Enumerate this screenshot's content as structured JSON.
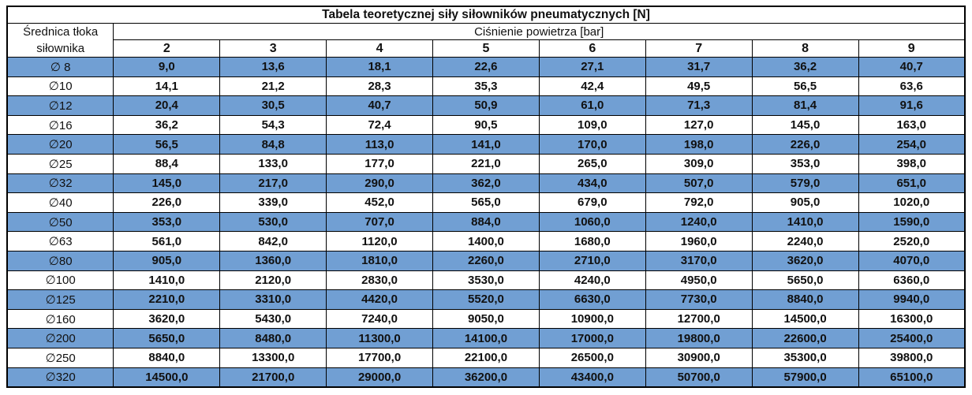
{
  "colors": {
    "row_band_blue": "#719FD3",
    "row_plain_white": "#FFFFFF",
    "border_black": "#000000",
    "text": "#111111"
  },
  "chart_data": {
    "type": "table",
    "title": "Tabela teoretycznej siły siłowników pneumatycznych [N]",
    "row_header": "Średnica tłoka siłownika",
    "column_group_header": "Ciśnienie powietrza [bar]",
    "columns": [
      "2",
      "3",
      "4",
      "5",
      "6",
      "7",
      "8",
      "9"
    ],
    "row_banding": "alternating, first data row blue",
    "rows": [
      {
        "diameter": "∅ 8",
        "values": [
          "9,0",
          "13,6",
          "18,1",
          "22,6",
          "27,1",
          "31,7",
          "36,2",
          "40,7"
        ]
      },
      {
        "diameter": "∅10",
        "values": [
          "14,1",
          "21,2",
          "28,3",
          "35,3",
          "42,4",
          "49,5",
          "56,5",
          "63,6"
        ]
      },
      {
        "diameter": "∅12",
        "values": [
          "20,4",
          "30,5",
          "40,7",
          "50,9",
          "61,0",
          "71,3",
          "81,4",
          "91,6"
        ]
      },
      {
        "diameter": "∅16",
        "values": [
          "36,2",
          "54,3",
          "72,4",
          "90,5",
          "109,0",
          "127,0",
          "145,0",
          "163,0"
        ]
      },
      {
        "diameter": "∅20",
        "values": [
          "56,5",
          "84,8",
          "113,0",
          "141,0",
          "170,0",
          "198,0",
          "226,0",
          "254,0"
        ]
      },
      {
        "diameter": "∅25",
        "values": [
          "88,4",
          "133,0",
          "177,0",
          "221,0",
          "265,0",
          "309,0",
          "353,0",
          "398,0"
        ]
      },
      {
        "diameter": "∅32",
        "values": [
          "145,0",
          "217,0",
          "290,0",
          "362,0",
          "434,0",
          "507,0",
          "579,0",
          "651,0"
        ]
      },
      {
        "diameter": "∅40",
        "values": [
          "226,0",
          "339,0",
          "452,0",
          "565,0",
          "679,0",
          "792,0",
          "905,0",
          "1020,0"
        ]
      },
      {
        "diameter": "∅50",
        "values": [
          "353,0",
          "530,0",
          "707,0",
          "884,0",
          "1060,0",
          "1240,0",
          "1410,0",
          "1590,0"
        ]
      },
      {
        "diameter": "∅63",
        "values": [
          "561,0",
          "842,0",
          "1120,0",
          "1400,0",
          "1680,0",
          "1960,0",
          "2240,0",
          "2520,0"
        ]
      },
      {
        "diameter": "∅80",
        "values": [
          "905,0",
          "1360,0",
          "1810,0",
          "2260,0",
          "2710,0",
          "3170,0",
          "3620,0",
          "4070,0"
        ]
      },
      {
        "diameter": "∅100",
        "values": [
          "1410,0",
          "2120,0",
          "2830,0",
          "3530,0",
          "4240,0",
          "4950,0",
          "5650,0",
          "6360,0"
        ]
      },
      {
        "diameter": "∅125",
        "values": [
          "2210,0",
          "3310,0",
          "4420,0",
          "5520,0",
          "6630,0",
          "7730,0",
          "8840,0",
          "9940,0"
        ]
      },
      {
        "diameter": "∅160",
        "values": [
          "3620,0",
          "5430,0",
          "7240,0",
          "9050,0",
          "10900,0",
          "12700,0",
          "14500,0",
          "16300,0"
        ]
      },
      {
        "diameter": "∅200",
        "values": [
          "5650,0",
          "8480,0",
          "11300,0",
          "14100,0",
          "17000,0",
          "19800,0",
          "22600,0",
          "25400,0"
        ]
      },
      {
        "diameter": "∅250",
        "values": [
          "8840,0",
          "13300,0",
          "17700,0",
          "22100,0",
          "26500,0",
          "30900,0",
          "35300,0",
          "39800,0"
        ]
      },
      {
        "diameter": "∅320",
        "values": [
          "14500,0",
          "21700,0",
          "29000,0",
          "36200,0",
          "43400,0",
          "50700,0",
          "57900,0",
          "65100,0"
        ]
      }
    ]
  }
}
